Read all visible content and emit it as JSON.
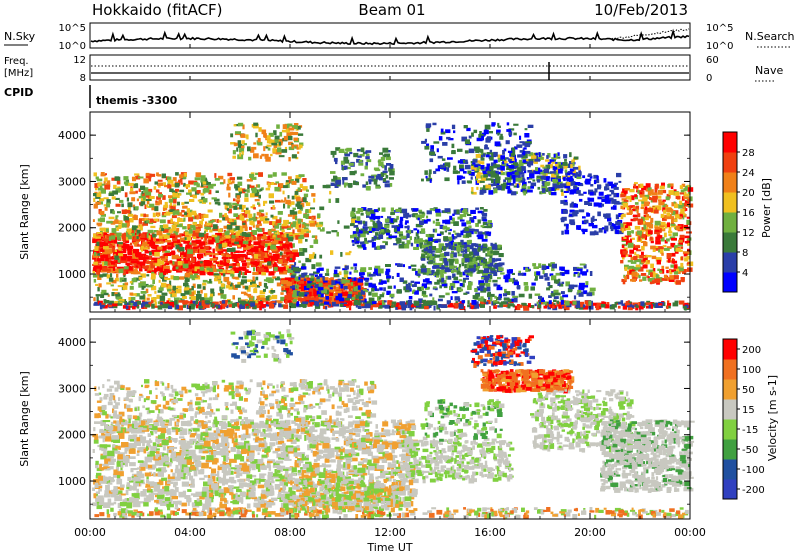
{
  "header": {
    "title": "Hokkaido (fitACF)",
    "beam": "Beam 01",
    "date": "10/Feb/2013"
  },
  "top_panels": {
    "nsky": {
      "label": "N.Sky",
      "ticks": [
        "10^5",
        "10^0"
      ],
      "right_ticks": [
        "10^5",
        "10^0"
      ],
      "right_label": "N.Search"
    },
    "freq": {
      "label_line1": "Freq.",
      "label_line2": "[MHz]",
      "ticks": [
        "12",
        "8"
      ],
      "right_ticks": [
        "60",
        "0"
      ],
      "right_label": "Nave"
    },
    "cpid": {
      "label": "CPID",
      "value": "themis -3300"
    }
  },
  "time_axis": {
    "label": "Time UT",
    "ticks": [
      "00:00",
      "04:00",
      "08:00",
      "12:00",
      "16:00",
      "20:00",
      "00:00"
    ]
  },
  "chart_data": [
    {
      "type": "heatmap",
      "quantity": "power",
      "xlabel": "Time UT",
      "ylabel": "Slant Range [km]",
      "xlim": [
        0,
        24
      ],
      "ylim": [
        180,
        4500
      ],
      "yticks": [
        "4000",
        "3000",
        "2000",
        "1000"
      ],
      "colorbar": {
        "label": "Power [dB]",
        "ticks": [
          "28",
          "24",
          "20",
          "16",
          "12",
          "8",
          "4"
        ],
        "colors": [
          "#0000ff",
          "#2a3ea8",
          "#3a7a3a",
          "#70b040",
          "#f0c020",
          "#f08018",
          "#f04010",
          "#ff0000"
        ]
      }
    },
    {
      "type": "heatmap",
      "quantity": "velocity",
      "xlabel": "Time UT",
      "ylabel": "Slant Range [km]",
      "xlim": [
        0,
        24
      ],
      "ylim": [
        180,
        4500
      ],
      "yticks": [
        "4000",
        "3000",
        "2000",
        "1000"
      ],
      "colorbar": {
        "label": "Velocity [m s-1]",
        "ticks": [
          "200",
          "100",
          "50",
          "15",
          "-15",
          "-50",
          "-100",
          "-200"
        ],
        "colors": [
          "#3040c0",
          "#2050a0",
          "#40a040",
          "#80d040",
          "#c8c8c0",
          "#f0a030",
          "#f07020",
          "#ff0000"
        ]
      }
    }
  ]
}
